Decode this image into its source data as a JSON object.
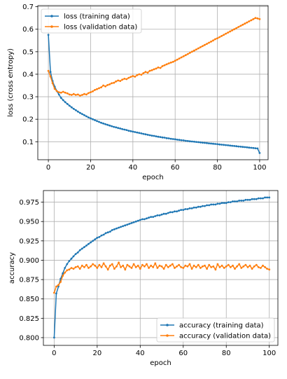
{
  "chart_data": [
    {
      "type": "line",
      "xlabel": "epoch",
      "ylabel": "loss (cross entropy)",
      "xlim": [
        -5,
        104
      ],
      "ylim": [
        0.02,
        0.705
      ],
      "xticks": [
        0,
        20,
        40,
        60,
        80,
        100
      ],
      "yticks": [
        0.1,
        0.2,
        0.3,
        0.4,
        0.5,
        0.6,
        0.7
      ],
      "ytick_labels": [
        "0.1",
        "0.2",
        "0.3",
        "0.4",
        "0.5",
        "0.6",
        "0.7"
      ],
      "grid": true,
      "legend_position": "upper left",
      "x": [
        0,
        1,
        2,
        3,
        4,
        5,
        6,
        7,
        8,
        9,
        10,
        11,
        12,
        13,
        14,
        15,
        16,
        17,
        18,
        19,
        20,
        21,
        22,
        23,
        24,
        25,
        26,
        27,
        28,
        29,
        30,
        31,
        32,
        33,
        34,
        35,
        36,
        37,
        38,
        39,
        40,
        41,
        42,
        43,
        44,
        45,
        46,
        47,
        48,
        49,
        50,
        51,
        52,
        53,
        54,
        55,
        56,
        57,
        58,
        59,
        60,
        61,
        62,
        63,
        64,
        65,
        66,
        67,
        68,
        69,
        70,
        71,
        72,
        73,
        74,
        75,
        76,
        77,
        78,
        79,
        80,
        81,
        82,
        83,
        84,
        85,
        86,
        87,
        88,
        89,
        90,
        91,
        92,
        93,
        94,
        95,
        96,
        97,
        98,
        99,
        100
      ],
      "series": [
        {
          "name": "loss (training data)",
          "color": "#1f77b4",
          "values": [
            0.575,
            0.41,
            0.37,
            0.345,
            0.325,
            0.31,
            0.295,
            0.285,
            0.276,
            0.268,
            0.26,
            0.253,
            0.246,
            0.24,
            0.234,
            0.228,
            0.223,
            0.218,
            0.213,
            0.208,
            0.204,
            0.2,
            0.196,
            0.192,
            0.188,
            0.184,
            0.181,
            0.178,
            0.175,
            0.172,
            0.169,
            0.166,
            0.164,
            0.161,
            0.159,
            0.156,
            0.154,
            0.152,
            0.149,
            0.147,
            0.145,
            0.143,
            0.141,
            0.139,
            0.137,
            0.135,
            0.133,
            0.131,
            0.129,
            0.127,
            0.126,
            0.124,
            0.122,
            0.121,
            0.119,
            0.118,
            0.116,
            0.115,
            0.113,
            0.112,
            0.111,
            0.109,
            0.108,
            0.107,
            0.106,
            0.104,
            0.103,
            0.102,
            0.101,
            0.1,
            0.099,
            0.098,
            0.097,
            0.096,
            0.095,
            0.094,
            0.093,
            0.092,
            0.091,
            0.09,
            0.089,
            0.088,
            0.087,
            0.086,
            0.085,
            0.084,
            0.083,
            0.082,
            0.081,
            0.08,
            0.079,
            0.078,
            0.077,
            0.076,
            0.075,
            0.074,
            0.073,
            0.072,
            0.071,
            0.07,
            0.05
          ]
        },
        {
          "name": "loss (validation data)",
          "color": "#ff7f0e",
          "values": [
            0.415,
            0.39,
            0.36,
            0.335,
            0.325,
            0.32,
            0.318,
            0.322,
            0.318,
            0.315,
            0.31,
            0.308,
            0.312,
            0.308,
            0.31,
            0.305,
            0.308,
            0.312,
            0.31,
            0.316,
            0.32,
            0.324,
            0.33,
            0.334,
            0.338,
            0.342,
            0.35,
            0.346,
            0.352,
            0.355,
            0.36,
            0.362,
            0.368,
            0.372,
            0.37,
            0.376,
            0.38,
            0.378,
            0.384,
            0.388,
            0.392,
            0.389,
            0.396,
            0.4,
            0.398,
            0.405,
            0.41,
            0.407,
            0.415,
            0.418,
            0.422,
            0.425,
            0.43,
            0.428,
            0.436,
            0.44,
            0.444,
            0.448,
            0.452,
            0.455,
            0.46,
            0.465,
            0.47,
            0.475,
            0.48,
            0.485,
            0.49,
            0.495,
            0.5,
            0.505,
            0.51,
            0.515,
            0.52,
            0.525,
            0.53,
            0.535,
            0.54,
            0.545,
            0.55,
            0.556,
            0.56,
            0.565,
            0.57,
            0.575,
            0.58,
            0.585,
            0.59,
            0.595,
            0.6,
            0.605,
            0.61,
            0.615,
            0.62,
            0.625,
            0.63,
            0.635,
            0.64,
            0.645,
            0.65,
            0.648,
            0.645
          ]
        }
      ]
    },
    {
      "type": "line",
      "xlabel": "epoch",
      "ylabel": "accuracy",
      "xlim": [
        -5,
        104
      ],
      "ylim": [
        0.79,
        0.99
      ],
      "xticks": [
        0,
        20,
        40,
        60,
        80,
        100
      ],
      "yticks": [
        0.8,
        0.825,
        0.85,
        0.875,
        0.9,
        0.925,
        0.95,
        0.975
      ],
      "ytick_labels": [
        "0.800",
        "0.825",
        "0.850",
        "0.875",
        "0.900",
        "0.925",
        "0.950",
        "0.975"
      ],
      "grid": true,
      "legend_position": "lower right",
      "x": [
        0,
        1,
        2,
        3,
        4,
        5,
        6,
        7,
        8,
        9,
        10,
        11,
        12,
        13,
        14,
        15,
        16,
        17,
        18,
        19,
        20,
        21,
        22,
        23,
        24,
        25,
        26,
        27,
        28,
        29,
        30,
        31,
        32,
        33,
        34,
        35,
        36,
        37,
        38,
        39,
        40,
        41,
        42,
        43,
        44,
        45,
        46,
        47,
        48,
        49,
        50,
        51,
        52,
        53,
        54,
        55,
        56,
        57,
        58,
        59,
        60,
        61,
        62,
        63,
        64,
        65,
        66,
        67,
        68,
        69,
        70,
        71,
        72,
        73,
        74,
        75,
        76,
        77,
        78,
        79,
        80,
        81,
        82,
        83,
        84,
        85,
        86,
        87,
        88,
        89,
        90,
        91,
        92,
        93,
        94,
        95,
        96,
        97,
        98,
        99,
        100
      ],
      "series": [
        {
          "name": "accuracy (training data)",
          "color": "#1f77b4",
          "values": [
            0.8,
            0.857,
            0.866,
            0.876,
            0.883,
            0.89,
            0.895,
            0.899,
            0.902,
            0.905,
            0.908,
            0.91,
            0.913,
            0.915,
            0.917,
            0.919,
            0.921,
            0.923,
            0.925,
            0.927,
            0.929,
            0.93,
            0.932,
            0.933,
            0.935,
            0.936,
            0.937,
            0.939,
            0.94,
            0.941,
            0.942,
            0.943,
            0.944,
            0.945,
            0.946,
            0.947,
            0.948,
            0.949,
            0.95,
            0.951,
            0.952,
            0.953,
            0.953,
            0.954,
            0.955,
            0.956,
            0.956,
            0.957,
            0.958,
            0.958,
            0.959,
            0.96,
            0.96,
            0.961,
            0.962,
            0.962,
            0.963,
            0.963,
            0.964,
            0.965,
            0.965,
            0.966,
            0.966,
            0.967,
            0.967,
            0.968,
            0.968,
            0.969,
            0.969,
            0.97,
            0.97,
            0.971,
            0.971,
            0.972,
            0.972,
            0.972,
            0.973,
            0.973,
            0.974,
            0.974,
            0.974,
            0.975,
            0.975,
            0.976,
            0.976,
            0.976,
            0.977,
            0.977,
            0.977,
            0.978,
            0.978,
            0.978,
            0.979,
            0.979,
            0.979,
            0.98,
            0.98,
            0.98,
            0.981,
            0.981,
            0.981
          ]
        },
        {
          "name": "accuracy (validation data)",
          "color": "#ff7f0e",
          "values": [
            0.858,
            0.866,
            0.868,
            0.872,
            0.88,
            0.884,
            0.887,
            0.888,
            0.89,
            0.889,
            0.891,
            0.892,
            0.889,
            0.893,
            0.891,
            0.894,
            0.89,
            0.892,
            0.895,
            0.893,
            0.89,
            0.894,
            0.891,
            0.896,
            0.892,
            0.888,
            0.893,
            0.895,
            0.889,
            0.892,
            0.897,
            0.891,
            0.893,
            0.888,
            0.894,
            0.892,
            0.89,
            0.895,
            0.891,
            0.893,
            0.889,
            0.894,
            0.892,
            0.895,
            0.89,
            0.893,
            0.891,
            0.896,
            0.89,
            0.893,
            0.892,
            0.889,
            0.894,
            0.891,
            0.893,
            0.895,
            0.89,
            0.892,
            0.894,
            0.891,
            0.89,
            0.893,
            0.892,
            0.895,
            0.889,
            0.893,
            0.891,
            0.894,
            0.89,
            0.892,
            0.893,
            0.889,
            0.894,
            0.891,
            0.892,
            0.888,
            0.895,
            0.891,
            0.893,
            0.89,
            0.892,
            0.894,
            0.891,
            0.893,
            0.889,
            0.892,
            0.895,
            0.89,
            0.892,
            0.894,
            0.891,
            0.893,
            0.889,
            0.892,
            0.894,
            0.891,
            0.89,
            0.893,
            0.891,
            0.889,
            0.888
          ]
        }
      ]
    }
  ]
}
